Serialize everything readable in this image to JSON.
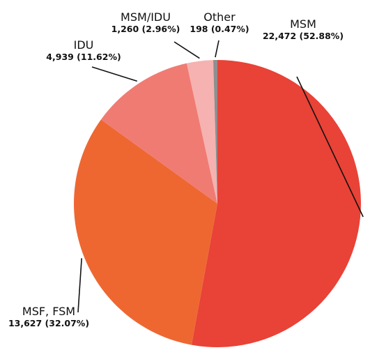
{
  "chart_data": {
    "type": "pie",
    "title": "",
    "slices": [
      {
        "name": "MSM",
        "value": 22472,
        "value_label": "22,472 (52.88%)",
        "percent": 52.88,
        "color": "#e94237"
      },
      {
        "name": "MSF, FSM",
        "value": 13627,
        "value_label": "13,627 (32.07%)",
        "percent": 32.07,
        "color": "#ee6731"
      },
      {
        "name": "IDU",
        "value": 4939,
        "value_label": "4,939 (11.62%)",
        "percent": 11.62,
        "color": "#f07b73"
      },
      {
        "name": "MSM/IDU",
        "value": 1260,
        "value_label": "1,260 (2.96%)",
        "percent": 2.96,
        "color": "#f5b2b0"
      },
      {
        "name": "Other",
        "value": 198,
        "value_label": "198 (0.47%)",
        "percent": 0.47,
        "color": "#8f8f8f"
      }
    ],
    "start_angle": "12 o'clock",
    "direction": "clockwise",
    "legend": "none (direct labels with leader lines)"
  }
}
